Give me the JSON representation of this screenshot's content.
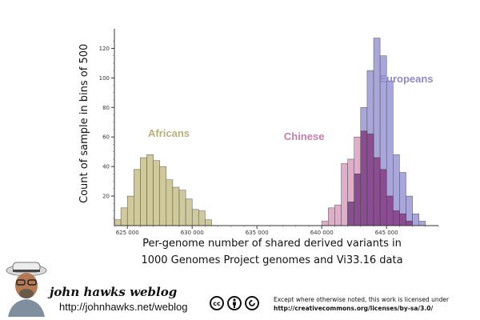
{
  "chart_data": {
    "type": "bar",
    "title": "",
    "xlabel_line1": "Per-genome number of shared derived variants in",
    "xlabel_line2": "1000 Genomes Project genomes and Vi33.16 data",
    "ylabel": "Count of sample in bins of 500",
    "xlim": [
      624000,
      649000
    ],
    "ylim": [
      0,
      130
    ],
    "x_ticks": [
      {
        "value": 625000,
        "label": "625 000"
      },
      {
        "value": 630000,
        "label": "630 000"
      },
      {
        "value": 635000,
        "label": "635 000"
      },
      {
        "value": 640000,
        "label": "640 000"
      },
      {
        "value": 645000,
        "label": "645 000"
      }
    ],
    "y_ticks": [
      {
        "value": 20,
        "label": "20"
      },
      {
        "value": 40,
        "label": "40"
      },
      {
        "value": 60,
        "label": "60"
      },
      {
        "value": 80,
        "label": "80"
      },
      {
        "value": 100,
        "label": "100"
      },
      {
        "value": 120,
        "label": "120"
      }
    ],
    "bin_width": 500,
    "series": [
      {
        "name": "Africans",
        "color": "#c8bf8a",
        "label_color": "#b9b07a",
        "bins": [
          {
            "x": 624000,
            "y": 4
          },
          {
            "x": 624500,
            "y": 12
          },
          {
            "x": 625000,
            "y": 20
          },
          {
            "x": 625500,
            "y": 38
          },
          {
            "x": 626000,
            "y": 46
          },
          {
            "x": 626500,
            "y": 48
          },
          {
            "x": 627000,
            "y": 44
          },
          {
            "x": 627500,
            "y": 40
          },
          {
            "x": 628000,
            "y": 31
          },
          {
            "x": 628500,
            "y": 26
          },
          {
            "x": 629000,
            "y": 24
          },
          {
            "x": 629500,
            "y": 18
          },
          {
            "x": 630000,
            "y": 11
          },
          {
            "x": 630500,
            "y": 10
          },
          {
            "x": 631000,
            "y": 4
          }
        ]
      },
      {
        "name": "Europeans",
        "color": "#9a96d2",
        "label_color": "#8f8ac9",
        "bins": [
          {
            "x": 642000,
            "y": 16
          },
          {
            "x": 642500,
            "y": 35
          },
          {
            "x": 643000,
            "y": 80
          },
          {
            "x": 643500,
            "y": 105
          },
          {
            "x": 644000,
            "y": 127
          },
          {
            "x": 644500,
            "y": 115
          },
          {
            "x": 645000,
            "y": 98
          },
          {
            "x": 645500,
            "y": 48
          },
          {
            "x": 646000,
            "y": 36
          },
          {
            "x": 646500,
            "y": 20
          },
          {
            "x": 647000,
            "y": 8
          },
          {
            "x": 647500,
            "y": 3
          }
        ]
      },
      {
        "name": "Chinese",
        "color": "#d692b8",
        "label_color": "#c97fa9",
        "bins": [
          {
            "x": 640000,
            "y": 3
          },
          {
            "x": 640500,
            "y": 12
          },
          {
            "x": 641000,
            "y": 14
          },
          {
            "x": 641500,
            "y": 42
          },
          {
            "x": 642000,
            "y": 45
          },
          {
            "x": 642500,
            "y": 60
          },
          {
            "x": 643000,
            "y": 64
          },
          {
            "x": 643500,
            "y": 62
          },
          {
            "x": 644000,
            "y": 46
          },
          {
            "x": 644500,
            "y": 38
          },
          {
            "x": 645000,
            "y": 20
          },
          {
            "x": 645500,
            "y": 10
          },
          {
            "x": 646000,
            "y": 8
          },
          {
            "x": 646500,
            "y": 3
          }
        ]
      }
    ],
    "overlap_color": "#7b3b86",
    "labels": [
      {
        "series": "Africans",
        "x": 628200,
        "y": 60
      },
      {
        "series": "Chinese",
        "x": 640200,
        "y": 58
      },
      {
        "series": "Europeans",
        "x": 648600,
        "y": 97
      }
    ]
  },
  "footer": {
    "blog_title": "john hawks weblog",
    "blog_url": "http://johnhawks.net/weblog",
    "cc_icons": [
      "cc-icon",
      "attribution-icon",
      "share-alike-icon"
    ],
    "license_line1": "Except where otherwise noted, this work is licensed under",
    "license_url": "http://creativecommons.org/licenses/by-sa/3.0/"
  }
}
